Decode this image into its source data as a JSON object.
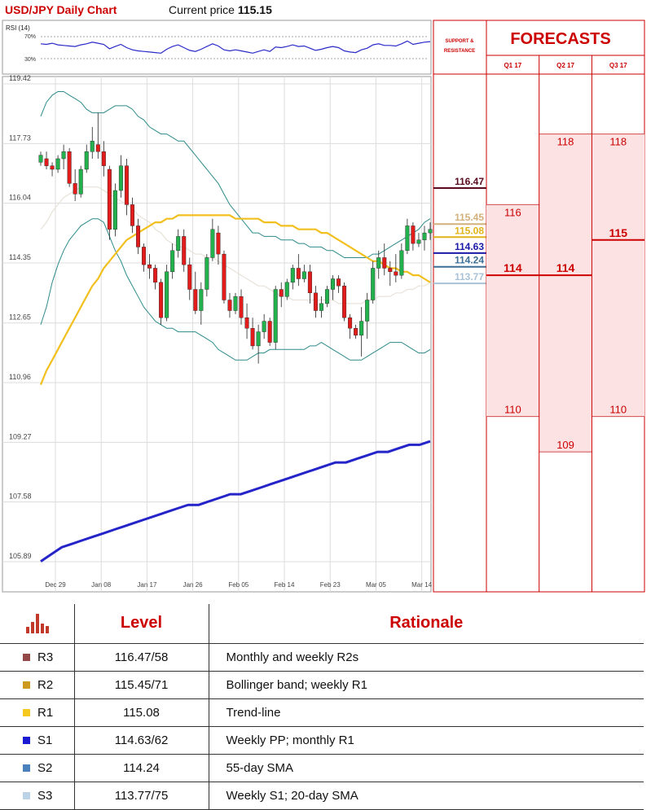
{
  "header": {
    "title": "USD/JPY Daily Chart",
    "price_label": "Current price",
    "price_value": "115.15"
  },
  "rsi": {
    "label": "RSI (14)",
    "upper": "70%",
    "lower": "30%"
  },
  "chart_data": {
    "type": "candlestick",
    "title": "USD/JPY Daily Chart",
    "y_ticks": [
      "119.42",
      "117.73",
      "116.04",
      "114.35",
      "112.65",
      "110.96",
      "109.27",
      "107.58",
      "105.89"
    ],
    "ylim": [
      105.89,
      119.42
    ],
    "x_ticks": [
      "Dec 29",
      "Jan 08",
      "Jan 17",
      "Jan 26",
      "Feb 05",
      "Feb 14",
      "Feb 23",
      "Mar 05",
      "Mar 14"
    ],
    "grid": true,
    "candles": [
      [
        117.2,
        117.5,
        117.1,
        117.4
      ],
      [
        117.3,
        117.5,
        117.0,
        117.1
      ],
      [
        117.1,
        117.2,
        116.8,
        117.0
      ],
      [
        117.0,
        117.4,
        116.9,
        117.3
      ],
      [
        117.3,
        117.7,
        117.0,
        117.5
      ],
      [
        117.5,
        117.6,
        116.5,
        116.6
      ],
      [
        116.6,
        117.0,
        116.1,
        116.3
      ],
      [
        116.3,
        117.1,
        116.2,
        117.0
      ],
      [
        117.0,
        117.7,
        116.9,
        117.5
      ],
      [
        117.5,
        118.2,
        117.3,
        117.8
      ],
      [
        117.7,
        118.6,
        117.3,
        117.5
      ],
      [
        117.5,
        117.8,
        116.8,
        117.1
      ],
      [
        117.0,
        117.1,
        115.0,
        115.3
      ],
      [
        115.3,
        116.6,
        115.1,
        116.4
      ],
      [
        116.4,
        117.4,
        116.2,
        117.1
      ],
      [
        117.1,
        117.3,
        115.7,
        116.0
      ],
      [
        116.0,
        116.2,
        115.2,
        115.4
      ],
      [
        115.4,
        115.6,
        114.6,
        114.8
      ],
      [
        114.8,
        114.9,
        114.1,
        114.3
      ],
      [
        114.3,
        114.6,
        113.9,
        114.2
      ],
      [
        114.2,
        114.3,
        113.6,
        113.8
      ],
      [
        113.8,
        113.9,
        112.6,
        112.8
      ],
      [
        112.8,
        114.3,
        112.7,
        114.1
      ],
      [
        114.1,
        114.9,
        113.9,
        114.7
      ],
      [
        114.7,
        115.3,
        114.5,
        115.1
      ],
      [
        115.1,
        115.3,
        114.1,
        114.3
      ],
      [
        114.3,
        114.5,
        113.3,
        113.6
      ],
      [
        113.6,
        114.1,
        112.9,
        113.0
      ],
      [
        113.0,
        113.8,
        112.6,
        113.6
      ],
      [
        113.6,
        114.6,
        113.4,
        114.5
      ],
      [
        114.5,
        115.6,
        114.4,
        115.3
      ],
      [
        115.2,
        115.4,
        114.3,
        114.6
      ],
      [
        114.6,
        114.7,
        113.2,
        113.3
      ],
      [
        113.3,
        113.5,
        112.8,
        113.0
      ],
      [
        113.0,
        113.5,
        112.9,
        113.4
      ],
      [
        113.4,
        113.6,
        112.6,
        112.8
      ],
      [
        112.8,
        113.2,
        112.2,
        112.5
      ],
      [
        112.5,
        112.8,
        111.9,
        112.0
      ],
      [
        112.0,
        112.6,
        111.5,
        112.4
      ],
      [
        112.4,
        112.9,
        112.2,
        112.7
      ],
      [
        112.7,
        112.8,
        112.0,
        112.1
      ],
      [
        112.1,
        113.7,
        111.9,
        113.6
      ],
      [
        113.6,
        113.8,
        113.1,
        113.4
      ],
      [
        113.4,
        113.9,
        113.3,
        113.8
      ],
      [
        113.8,
        114.3,
        113.6,
        114.2
      ],
      [
        114.2,
        114.6,
        113.7,
        113.9
      ],
      [
        113.9,
        114.3,
        113.8,
        114.1
      ],
      [
        114.1,
        114.3,
        113.2,
        113.5
      ],
      [
        113.5,
        113.7,
        112.8,
        113.0
      ],
      [
        113.0,
        113.4,
        112.8,
        113.2
      ],
      [
        113.2,
        113.7,
        113.1,
        113.6
      ],
      [
        113.6,
        114.0,
        113.3,
        113.9
      ],
      [
        113.9,
        114.0,
        113.5,
        113.7
      ],
      [
        113.7,
        113.8,
        112.7,
        112.8
      ],
      [
        112.8,
        112.9,
        112.2,
        112.5
      ],
      [
        112.5,
        112.6,
        112.2,
        112.3
      ],
      [
        112.3,
        113.1,
        111.7,
        112.7
      ],
      [
        112.7,
        113.5,
        112.2,
        113.3
      ],
      [
        113.3,
        114.4,
        113.2,
        114.2
      ],
      [
        114.2,
        114.7,
        113.9,
        114.5
      ],
      [
        114.5,
        114.9,
        114.0,
        114.2
      ],
      [
        114.2,
        114.4,
        113.7,
        114.1
      ],
      [
        114.1,
        114.6,
        113.8,
        114.0
      ],
      [
        114.0,
        114.9,
        113.9,
        114.7
      ],
      [
        114.7,
        115.6,
        114.6,
        115.4
      ],
      [
        115.4,
        115.5,
        114.7,
        114.9
      ],
      [
        114.9,
        115.2,
        114.8,
        115.0
      ],
      [
        115.0,
        115.4,
        114.7,
        115.2
      ],
      [
        115.2,
        115.5,
        115.0,
        115.3
      ]
    ],
    "sma55": [
      110.9,
      111.3,
      111.6,
      111.9,
      112.2,
      112.5,
      112.8,
      113.1,
      113.4,
      113.7,
      113.9,
      114.2,
      114.4,
      114.6,
      114.8,
      115.0,
      115.1,
      115.2,
      115.3,
      115.4,
      115.5,
      115.5,
      115.6,
      115.6,
      115.7,
      115.7,
      115.7,
      115.7,
      115.7,
      115.7,
      115.7,
      115.7,
      115.7,
      115.7,
      115.6,
      115.6,
      115.6,
      115.6,
      115.6,
      115.5,
      115.5,
      115.5,
      115.4,
      115.4,
      115.4,
      115.3,
      115.3,
      115.3,
      115.3,
      115.2,
      115.2,
      115.1,
      115.0,
      114.9,
      114.8,
      114.7,
      114.6,
      114.5,
      114.4,
      114.4,
      114.3,
      114.2,
      114.2,
      114.1,
      114.1,
      114.0,
      114.0,
      113.9,
      113.8
    ],
    "sma20": [
      115.3,
      115.5,
      115.8,
      116.0,
      116.2,
      116.3,
      116.4,
      116.5,
      116.5,
      116.5,
      116.5,
      116.4,
      116.3,
      116.2,
      116.1,
      116.0,
      115.9,
      115.7,
      115.6,
      115.5,
      115.3,
      115.2,
      115.0,
      114.9,
      114.8,
      114.8,
      114.7,
      114.6,
      114.6,
      114.5,
      114.5,
      114.4,
      114.3,
      114.2,
      114.1,
      114.0,
      113.9,
      113.8,
      113.7,
      113.7,
      113.6,
      113.5,
      113.4,
      113.4,
      113.3,
      113.3,
      113.3,
      113.3,
      113.3,
      113.3,
      113.3,
      113.3,
      113.2,
      113.2,
      113.2,
      113.2,
      113.2,
      113.3,
      113.3,
      113.4,
      113.4,
      113.4,
      113.5,
      113.5,
      113.6,
      113.6,
      113.7,
      113.7,
      113.8
    ],
    "bb_upper": [
      118.5,
      118.9,
      119.1,
      119.2,
      119.2,
      119.1,
      119.0,
      118.9,
      118.7,
      118.6,
      118.6,
      118.6,
      118.7,
      118.8,
      118.8,
      118.8,
      118.7,
      118.5,
      118.4,
      118.2,
      118.1,
      118.0,
      118.0,
      117.9,
      117.8,
      117.8,
      117.6,
      117.4,
      117.2,
      117.0,
      116.8,
      116.6,
      116.3,
      116.0,
      115.8,
      115.6,
      115.4,
      115.2,
      115.2,
      115.1,
      115.1,
      115.1,
      115.0,
      115.0,
      115.0,
      114.9,
      114.9,
      114.8,
      114.8,
      114.8,
      114.7,
      114.7,
      114.6,
      114.5,
      114.5,
      114.5,
      114.5,
      114.5,
      114.6,
      114.6,
      114.7,
      114.8,
      114.9,
      115.0,
      115.1,
      115.2,
      115.3,
      115.5,
      115.6
    ],
    "bb_lower": [
      112.6,
      113.1,
      113.8,
      114.3,
      114.7,
      115.0,
      115.2,
      115.4,
      115.5,
      115.6,
      115.6,
      115.5,
      115.1,
      114.7,
      114.4,
      114.0,
      113.7,
      113.4,
      113.1,
      112.9,
      112.7,
      112.6,
      112.5,
      112.5,
      112.4,
      112.4,
      112.4,
      112.4,
      112.3,
      112.2,
      112.1,
      111.9,
      111.8,
      111.7,
      111.6,
      111.6,
      111.6,
      111.7,
      111.8,
      111.8,
      111.9,
      111.9,
      111.9,
      111.9,
      111.9,
      111.9,
      111.9,
      112.0,
      112.0,
      112.1,
      112.0,
      111.9,
      111.8,
      111.7,
      111.6,
      111.6,
      111.6,
      111.7,
      111.8,
      111.9,
      112.0,
      112.1,
      112.1,
      112.1,
      112.0,
      111.9,
      111.8,
      111.8,
      111.9
    ],
    "sma200": [
      105.9,
      106.1,
      106.3,
      106.4,
      106.5,
      106.6,
      106.7,
      106.8,
      106.9,
      107.0,
      107.1,
      107.2,
      107.3,
      107.4,
      107.5,
      107.5,
      107.6,
      107.7,
      107.8,
      107.8,
      107.9,
      108.0,
      108.1,
      108.2,
      108.3,
      108.4,
      108.5,
      108.6,
      108.7,
      108.7,
      108.8,
      108.9,
      109.0,
      109.0,
      109.1,
      109.2,
      109.2,
      109.3
    ],
    "rsi_values": [
      57,
      56,
      58,
      55,
      54,
      53,
      52,
      55,
      57,
      60,
      58,
      56,
      48,
      52,
      56,
      50,
      46,
      44,
      43,
      42,
      41,
      40,
      47,
      52,
      55,
      50,
      45,
      43,
      47,
      52,
      57,
      53,
      46,
      44,
      46,
      44,
      42,
      40,
      43,
      46,
      43,
      51,
      50,
      52,
      55,
      52,
      53,
      49,
      45,
      47,
      50,
      52,
      50,
      44,
      42,
      41,
      46,
      49,
      55,
      57,
      54,
      54,
      53,
      57,
      62,
      56,
      58,
      60,
      61
    ]
  },
  "levels_panel": {
    "header": "SUPPORT & RESISTANCE",
    "levels": [
      {
        "label": "116.47",
        "value": 116.47,
        "color": "#5a0a1e",
        "weight": "bold"
      },
      {
        "label": "115.45",
        "value": 115.45,
        "color": "#d2b07a",
        "weight": "bold"
      },
      {
        "label": "115.08",
        "value": 115.08,
        "color": "#e0b318",
        "weight": "bold"
      },
      {
        "label": "114.63",
        "value": 114.63,
        "color": "#1a1aa8",
        "weight": "bold"
      },
      {
        "label": "114.24",
        "value": 114.24,
        "color": "#3a6e96",
        "weight": "bold"
      },
      {
        "label": "113.77",
        "value": 113.77,
        "color": "#a9c2d6",
        "weight": "bold"
      }
    ]
  },
  "forecasts": {
    "title": "FORECASTS",
    "quarters": [
      {
        "label": "Q1 17",
        "high": 116,
        "mid": 114,
        "low": 110,
        "high_label": "116",
        "mid_label": "114",
        "low_label": "110"
      },
      {
        "label": "Q2 17",
        "high": 118,
        "mid": 114,
        "low": 109,
        "high_label": "118",
        "mid_label": "114",
        "low_label": "109"
      },
      {
        "label": "Q3 17",
        "high": 118,
        "mid": 115,
        "low": 110,
        "high_label": "118",
        "mid_label": "115",
        "low_label": "110"
      }
    ]
  },
  "table": {
    "col_level": "Level",
    "col_rationale": "Rationale",
    "rows": [
      {
        "name": "R3",
        "level": "116.47/58",
        "rationale": "Monthly and weekly R2s",
        "color": "#944848"
      },
      {
        "name": "R2",
        "level": "115.45/71",
        "rationale": "Bollinger band; weekly R1",
        "color": "#cc9a1e"
      },
      {
        "name": "R1",
        "level": "115.08",
        "rationale": "Trend-line",
        "color": "#f4c81e"
      },
      {
        "name": "S1",
        "level": "114.63/62",
        "rationale": "Weekly PP; monthly R1",
        "color": "#1a1ad2"
      },
      {
        "name": "S2",
        "level": "114.24",
        "rationale": "55-day SMA",
        "color": "#4a80bc"
      },
      {
        "name": "S3",
        "level": "113.77/75",
        "rationale": "Weekly S1; 20-day SMA",
        "color": "#bcd2e6"
      }
    ]
  }
}
